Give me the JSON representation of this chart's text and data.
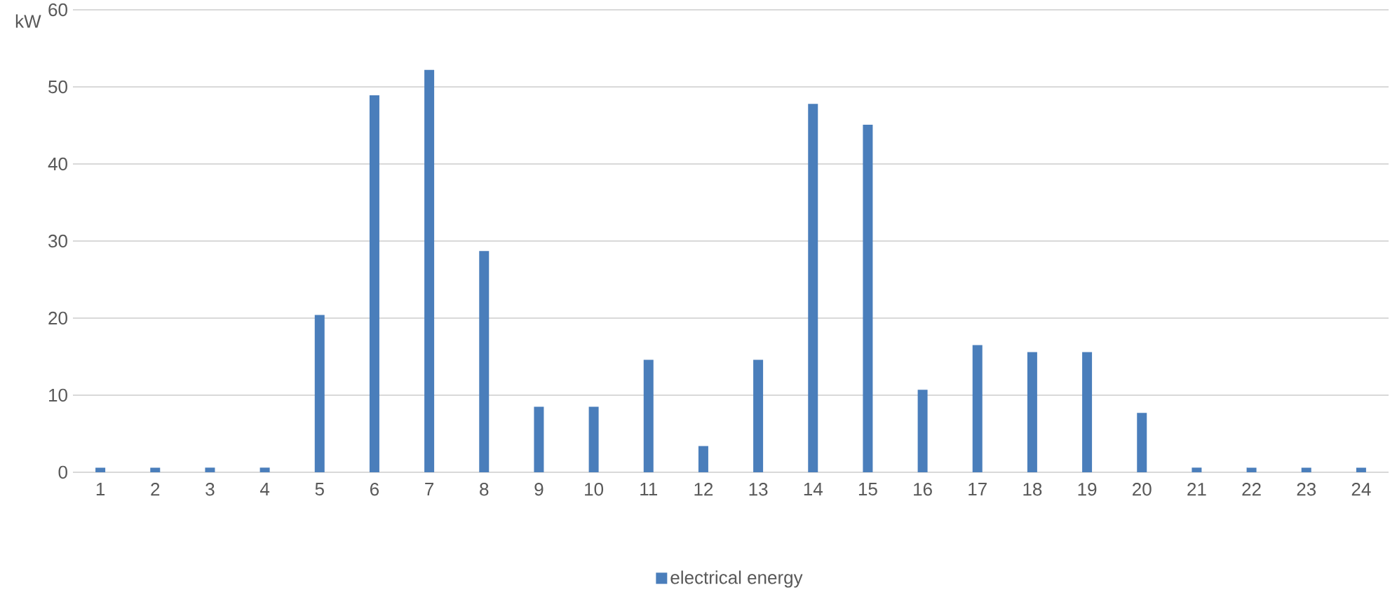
{
  "chart_data": {
    "type": "bar",
    "ylabel": "kW",
    "categories": [
      "1",
      "2",
      "3",
      "4",
      "5",
      "6",
      "7",
      "8",
      "9",
      "10",
      "11",
      "12",
      "13",
      "14",
      "15",
      "16",
      "17",
      "18",
      "19",
      "20",
      "21",
      "22",
      "23",
      "24"
    ],
    "series": [
      {
        "name": "electrical energy",
        "color": "#4a7ebb",
        "values": [
          0.6,
          0.6,
          0.6,
          0.6,
          20.4,
          48.9,
          52.2,
          28.7,
          8.5,
          8.5,
          14.6,
          3.4,
          14.6,
          47.8,
          45.1,
          10.7,
          16.5,
          15.6,
          15.6,
          7.7,
          0.6,
          0.6,
          0.6,
          0.6
        ]
      }
    ],
    "ylim": [
      0,
      60
    ],
    "yticks": [
      0,
      10,
      20,
      30,
      40,
      50,
      60
    ],
    "grid": "y",
    "legend": "bottom"
  }
}
